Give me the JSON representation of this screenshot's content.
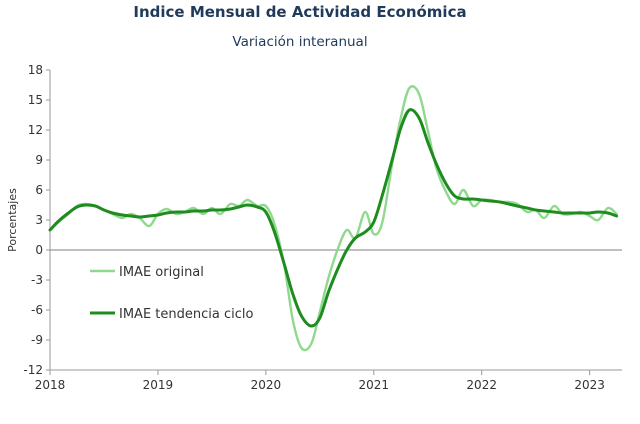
{
  "chart_data": {
    "type": "line",
    "title": "Indice Mensual de  Actividad Económica",
    "subtitle": "Variación interanual",
    "xlabel": "",
    "ylabel": "Porcentajes",
    "xlim": [
      2018,
      2023.3
    ],
    "ylim": [
      -12,
      18
    ],
    "y_ticks": [
      18,
      15,
      12,
      9,
      6,
      3,
      0,
      -3,
      -6,
      -9,
      -12
    ],
    "x_ticks": [
      "2018",
      "2019",
      "2020",
      "2021",
      "2022",
      "2023"
    ],
    "grid": false,
    "legend": "left-center",
    "series": [
      {
        "name": "IMAE original",
        "color": "#8fd98f",
        "points": [
          [
            2018.0,
            2.0
          ],
          [
            2018.08,
            2.8
          ],
          [
            2018.17,
            3.6
          ],
          [
            2018.25,
            4.4
          ],
          [
            2018.33,
            4.6
          ],
          [
            2018.42,
            4.4
          ],
          [
            2018.5,
            4.0
          ],
          [
            2018.58,
            3.6
          ],
          [
            2018.67,
            3.2
          ],
          [
            2018.75,
            3.6
          ],
          [
            2018.83,
            3.2
          ],
          [
            2018.92,
            2.4
          ],
          [
            2019.0,
            3.6
          ],
          [
            2019.08,
            4.1
          ],
          [
            2019.17,
            3.6
          ],
          [
            2019.25,
            3.8
          ],
          [
            2019.33,
            4.2
          ],
          [
            2019.42,
            3.6
          ],
          [
            2019.5,
            4.2
          ],
          [
            2019.58,
            3.6
          ],
          [
            2019.67,
            4.6
          ],
          [
            2019.75,
            4.4
          ],
          [
            2019.83,
            5.0
          ],
          [
            2019.92,
            4.4
          ],
          [
            2020.0,
            4.4
          ],
          [
            2020.08,
            2.6
          ],
          [
            2020.17,
            -1.5
          ],
          [
            2020.25,
            -7.0
          ],
          [
            2020.33,
            -9.8
          ],
          [
            2020.42,
            -9.4
          ],
          [
            2020.5,
            -6.2
          ],
          [
            2020.58,
            -2.8
          ],
          [
            2020.67,
            0.2
          ],
          [
            2020.75,
            2.0
          ],
          [
            2020.83,
            1.2
          ],
          [
            2020.92,
            3.8
          ],
          [
            2021.0,
            1.6
          ],
          [
            2021.08,
            2.8
          ],
          [
            2021.17,
            8.6
          ],
          [
            2021.25,
            13.2
          ],
          [
            2021.33,
            16.2
          ],
          [
            2021.42,
            15.6
          ],
          [
            2021.5,
            12.0
          ],
          [
            2021.58,
            8.2
          ],
          [
            2021.67,
            5.8
          ],
          [
            2021.75,
            4.6
          ],
          [
            2021.83,
            6.0
          ],
          [
            2021.92,
            4.4
          ],
          [
            2022.0,
            5.0
          ],
          [
            2022.08,
            5.0
          ],
          [
            2022.17,
            4.8
          ],
          [
            2022.25,
            4.8
          ],
          [
            2022.33,
            4.6
          ],
          [
            2022.42,
            3.8
          ],
          [
            2022.5,
            4.0
          ],
          [
            2022.58,
            3.2
          ],
          [
            2022.67,
            4.4
          ],
          [
            2022.75,
            3.6
          ],
          [
            2022.83,
            3.6
          ],
          [
            2022.92,
            3.8
          ],
          [
            2023.0,
            3.4
          ],
          [
            2023.08,
            3.0
          ],
          [
            2023.17,
            4.2
          ],
          [
            2023.25,
            3.6
          ]
        ]
      },
      {
        "name": "IMAE tendencia ciclo",
        "color": "#1e8c1e",
        "points": [
          [
            2018.0,
            2.0
          ],
          [
            2018.08,
            2.9
          ],
          [
            2018.17,
            3.7
          ],
          [
            2018.25,
            4.3
          ],
          [
            2018.33,
            4.5
          ],
          [
            2018.42,
            4.4
          ],
          [
            2018.5,
            4.0
          ],
          [
            2018.58,
            3.7
          ],
          [
            2018.67,
            3.5
          ],
          [
            2018.75,
            3.4
          ],
          [
            2018.83,
            3.3
          ],
          [
            2018.92,
            3.4
          ],
          [
            2019.0,
            3.5
          ],
          [
            2019.08,
            3.7
          ],
          [
            2019.17,
            3.8
          ],
          [
            2019.25,
            3.8
          ],
          [
            2019.33,
            3.9
          ],
          [
            2019.42,
            3.9
          ],
          [
            2019.5,
            4.0
          ],
          [
            2019.58,
            4.0
          ],
          [
            2019.67,
            4.1
          ],
          [
            2019.75,
            4.3
          ],
          [
            2019.83,
            4.5
          ],
          [
            2019.92,
            4.3
          ],
          [
            2020.0,
            3.8
          ],
          [
            2020.08,
            1.8
          ],
          [
            2020.17,
            -1.4
          ],
          [
            2020.25,
            -4.4
          ],
          [
            2020.33,
            -6.6
          ],
          [
            2020.42,
            -7.6
          ],
          [
            2020.5,
            -6.8
          ],
          [
            2020.58,
            -4.2
          ],
          [
            2020.67,
            -1.8
          ],
          [
            2020.75,
            0.0
          ],
          [
            2020.83,
            1.2
          ],
          [
            2020.92,
            1.8
          ],
          [
            2021.0,
            2.8
          ],
          [
            2021.08,
            5.5
          ],
          [
            2021.17,
            9.0
          ],
          [
            2021.25,
            12.2
          ],
          [
            2021.33,
            14.0
          ],
          [
            2021.42,
            13.2
          ],
          [
            2021.5,
            10.8
          ],
          [
            2021.58,
            8.6
          ],
          [
            2021.67,
            6.6
          ],
          [
            2021.75,
            5.4
          ],
          [
            2021.83,
            5.1
          ],
          [
            2021.92,
            5.1
          ],
          [
            2022.0,
            5.0
          ],
          [
            2022.08,
            4.9
          ],
          [
            2022.17,
            4.8
          ],
          [
            2022.25,
            4.6
          ],
          [
            2022.33,
            4.4
          ],
          [
            2022.42,
            4.2
          ],
          [
            2022.5,
            4.0
          ],
          [
            2022.58,
            3.9
          ],
          [
            2022.67,
            3.8
          ],
          [
            2022.75,
            3.7
          ],
          [
            2022.83,
            3.7
          ],
          [
            2022.92,
            3.7
          ],
          [
            2023.0,
            3.7
          ],
          [
            2023.08,
            3.8
          ],
          [
            2023.17,
            3.7
          ],
          [
            2023.25,
            3.4
          ]
        ]
      }
    ]
  }
}
